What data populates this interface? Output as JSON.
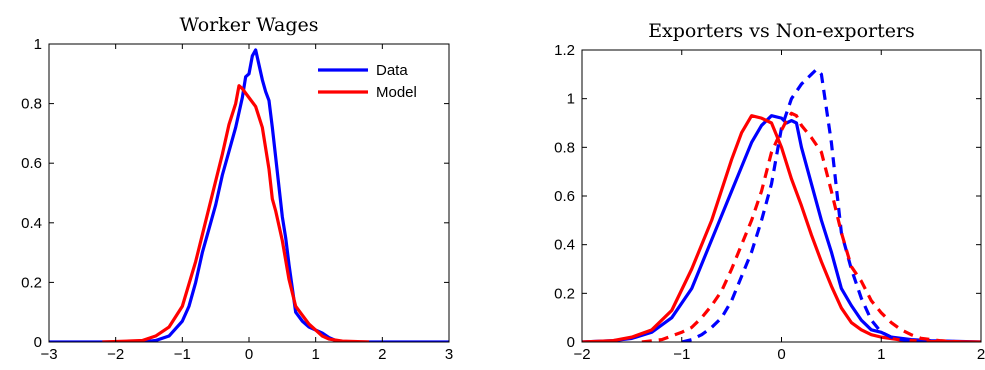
{
  "chart_data": [
    {
      "type": "line",
      "title": "Worker Wages",
      "xlabel": "",
      "ylabel": "",
      "xlim": [
        -3,
        3
      ],
      "ylim": [
        0,
        1
      ],
      "xticks": [
        -3,
        -2,
        -1,
        0,
        1,
        2,
        3
      ],
      "xtick_labels": [
        "−3",
        "−2",
        "−1",
        "0",
        "1",
        "2",
        "3"
      ],
      "yticks": [
        0,
        0.2,
        0.4,
        0.6,
        0.8,
        1
      ],
      "ytick_labels": [
        "0",
        "0.2",
        "0.4",
        "0.6",
        "0.8",
        "1"
      ],
      "legend": {
        "position": "top-right",
        "entries": [
          "Data",
          "Model"
        ]
      },
      "series": [
        {
          "name": "Data",
          "color": "#0000ff",
          "dash": "solid",
          "points": [
            [
              -3,
              0
            ],
            [
              -1.6,
              0
            ],
            [
              -1.4,
              0.005
            ],
            [
              -1.2,
              0.02
            ],
            [
              -1.0,
              0.07
            ],
            [
              -0.9,
              0.12
            ],
            [
              -0.8,
              0.2
            ],
            [
              -0.7,
              0.3
            ],
            [
              -0.6,
              0.38
            ],
            [
              -0.5,
              0.46
            ],
            [
              -0.4,
              0.56
            ],
            [
              -0.3,
              0.64
            ],
            [
              -0.2,
              0.72
            ],
            [
              -0.1,
              0.82
            ],
            [
              -0.05,
              0.89
            ],
            [
              0.0,
              0.9
            ],
            [
              0.05,
              0.96
            ],
            [
              0.1,
              0.98
            ],
            [
              0.15,
              0.93
            ],
            [
              0.2,
              0.88
            ],
            [
              0.25,
              0.84
            ],
            [
              0.3,
              0.81
            ],
            [
              0.35,
              0.72
            ],
            [
              0.4,
              0.62
            ],
            [
              0.45,
              0.52
            ],
            [
              0.5,
              0.42
            ],
            [
              0.55,
              0.35
            ],
            [
              0.6,
              0.26
            ],
            [
              0.65,
              0.18
            ],
            [
              0.7,
              0.1
            ],
            [
              0.8,
              0.07
            ],
            [
              0.9,
              0.05
            ],
            [
              1.0,
              0.04
            ],
            [
              1.1,
              0.03
            ],
            [
              1.2,
              0.015
            ],
            [
              1.3,
              0.005
            ],
            [
              1.4,
              0
            ],
            [
              3,
              0
            ]
          ]
        },
        {
          "name": "Model",
          "color": "#ff0000",
          "dash": "solid",
          "points": [
            [
              -2.2,
              0
            ],
            [
              -1.6,
              0.005
            ],
            [
              -1.4,
              0.02
            ],
            [
              -1.2,
              0.05
            ],
            [
              -1.0,
              0.12
            ],
            [
              -0.8,
              0.27
            ],
            [
              -0.6,
              0.45
            ],
            [
              -0.4,
              0.63
            ],
            [
              -0.3,
              0.73
            ],
            [
              -0.2,
              0.8
            ],
            [
              -0.15,
              0.86
            ],
            [
              -0.1,
              0.85
            ],
            [
              0.0,
              0.82
            ],
            [
              0.1,
              0.79
            ],
            [
              0.2,
              0.72
            ],
            [
              0.3,
              0.58
            ],
            [
              0.35,
              0.48
            ],
            [
              0.4,
              0.44
            ],
            [
              0.5,
              0.34
            ],
            [
              0.6,
              0.21
            ],
            [
              0.7,
              0.12
            ],
            [
              0.8,
              0.09
            ],
            [
              0.9,
              0.06
            ],
            [
              1.0,
              0.04
            ],
            [
              1.1,
              0.02
            ],
            [
              1.2,
              0.01
            ],
            [
              1.4,
              0.003
            ],
            [
              1.8,
              0
            ]
          ]
        }
      ]
    },
    {
      "type": "line",
      "title": "Exporters vs Non-exporters",
      "xlabel": "",
      "ylabel": "",
      "xlim": [
        -2,
        2
      ],
      "ylim": [
        0,
        1.2
      ],
      "xticks": [
        -2,
        -1,
        0,
        1,
        2
      ],
      "xtick_labels": [
        "−2",
        "−1",
        "0",
        "1",
        "2"
      ],
      "yticks": [
        0,
        0.2,
        0.4,
        0.6,
        0.8,
        1,
        1.2
      ],
      "ytick_labels": [
        "0",
        "0.2",
        "0.4",
        "0.6",
        "0.8",
        "1",
        "1.2"
      ],
      "series": [
        {
          "color": "#0000ff",
          "dash": "solid",
          "points": [
            [
              -2,
              0
            ],
            [
              -1.7,
              0.005
            ],
            [
              -1.5,
              0.015
            ],
            [
              -1.3,
              0.04
            ],
            [
              -1.1,
              0.1
            ],
            [
              -0.9,
              0.22
            ],
            [
              -0.7,
              0.42
            ],
            [
              -0.5,
              0.62
            ],
            [
              -0.4,
              0.72
            ],
            [
              -0.3,
              0.82
            ],
            [
              -0.2,
              0.89
            ],
            [
              -0.1,
              0.93
            ],
            [
              0.0,
              0.92
            ],
            [
              0.05,
              0.9
            ],
            [
              0.1,
              0.91
            ],
            [
              0.15,
              0.9
            ],
            [
              0.2,
              0.8
            ],
            [
              0.3,
              0.65
            ],
            [
              0.4,
              0.5
            ],
            [
              0.5,
              0.37
            ],
            [
              0.6,
              0.22
            ],
            [
              0.7,
              0.15
            ],
            [
              0.8,
              0.09
            ],
            [
              0.9,
              0.05
            ],
            [
              1.0,
              0.04
            ],
            [
              1.1,
              0.02
            ],
            [
              1.3,
              0.01
            ],
            [
              1.5,
              0.005
            ],
            [
              2,
              0
            ]
          ]
        },
        {
          "color": "#ff0000",
          "dash": "solid",
          "points": [
            [
              -2,
              0
            ],
            [
              -1.7,
              0.005
            ],
            [
              -1.5,
              0.02
            ],
            [
              -1.3,
              0.05
            ],
            [
              -1.1,
              0.13
            ],
            [
              -0.9,
              0.3
            ],
            [
              -0.7,
              0.5
            ],
            [
              -0.5,
              0.75
            ],
            [
              -0.4,
              0.86
            ],
            [
              -0.3,
              0.93
            ],
            [
              -0.2,
              0.92
            ],
            [
              -0.1,
              0.9
            ],
            [
              0.0,
              0.8
            ],
            [
              0.1,
              0.67
            ],
            [
              0.2,
              0.56
            ],
            [
              0.3,
              0.44
            ],
            [
              0.4,
              0.33
            ],
            [
              0.5,
              0.23
            ],
            [
              0.6,
              0.14
            ],
            [
              0.7,
              0.08
            ],
            [
              0.8,
              0.05
            ],
            [
              0.9,
              0.03
            ],
            [
              1.0,
              0.02
            ],
            [
              1.2,
              0.008
            ],
            [
              1.5,
              0.002
            ],
            [
              2,
              0
            ]
          ]
        },
        {
          "color": "#0000ff",
          "dash": "dashed",
          "points": [
            [
              -1.0,
              0
            ],
            [
              -0.9,
              0.01
            ],
            [
              -0.8,
              0.03
            ],
            [
              -0.7,
              0.06
            ],
            [
              -0.6,
              0.1
            ],
            [
              -0.5,
              0.17
            ],
            [
              -0.4,
              0.27
            ],
            [
              -0.3,
              0.37
            ],
            [
              -0.2,
              0.5
            ],
            [
              -0.1,
              0.65
            ],
            [
              0.0,
              0.88
            ],
            [
              0.1,
              1.0
            ],
            [
              0.2,
              1.06
            ],
            [
              0.3,
              1.1
            ],
            [
              0.35,
              1.12
            ],
            [
              0.4,
              1.1
            ],
            [
              0.5,
              0.82
            ],
            [
              0.6,
              0.45
            ],
            [
              0.7,
              0.3
            ],
            [
              0.8,
              0.18
            ],
            [
              0.9,
              0.09
            ],
            [
              1.0,
              0.04
            ],
            [
              1.1,
              0.02
            ],
            [
              1.2,
              0.01
            ],
            [
              1.3,
              0.005
            ],
            [
              1.5,
              0
            ]
          ]
        },
        {
          "color": "#ff0000",
          "dash": "dashed",
          "points": [
            [
              -1.4,
              0
            ],
            [
              -1.2,
              0.01
            ],
            [
              -1.0,
              0.04
            ],
            [
              -0.9,
              0.06
            ],
            [
              -0.8,
              0.1
            ],
            [
              -0.7,
              0.15
            ],
            [
              -0.6,
              0.21
            ],
            [
              -0.5,
              0.3
            ],
            [
              -0.4,
              0.4
            ],
            [
              -0.3,
              0.5
            ],
            [
              -0.2,
              0.62
            ],
            [
              -0.1,
              0.78
            ],
            [
              0.0,
              0.87
            ],
            [
              0.05,
              0.91
            ],
            [
              0.1,
              0.94
            ],
            [
              0.15,
              0.93
            ],
            [
              0.2,
              0.89
            ],
            [
              0.3,
              0.84
            ],
            [
              0.4,
              0.78
            ],
            [
              0.5,
              0.62
            ],
            [
              0.6,
              0.45
            ],
            [
              0.7,
              0.31
            ],
            [
              0.8,
              0.25
            ],
            [
              0.9,
              0.17
            ],
            [
              1.0,
              0.12
            ],
            [
              1.1,
              0.08
            ],
            [
              1.2,
              0.05
            ],
            [
              1.3,
              0.03
            ],
            [
              1.4,
              0.015
            ],
            [
              1.6,
              0.005
            ],
            [
              1.8,
              0
            ]
          ]
        }
      ]
    }
  ]
}
